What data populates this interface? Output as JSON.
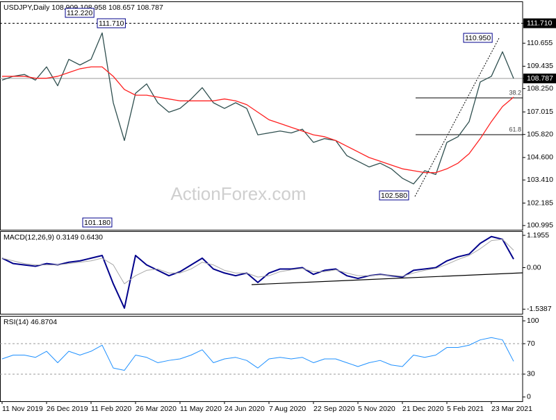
{
  "chart_data": [
    {
      "type": "line",
      "title": "USDJPY,Daily  108.909 108.958 108.657 108.787",
      "watermark": "ActionForex.com",
      "categories": [
        "11 Nov 2019",
        null,
        null,
        null,
        "26 Dec 2019",
        null,
        null,
        null,
        "11 Feb 2020",
        null,
        null,
        null,
        "26 Mar 2020",
        null,
        null,
        null,
        "11 May 2020",
        null,
        null,
        null,
        "24 Jun 2020",
        null,
        null,
        null,
        "7 Aug 2020",
        null,
        null,
        null,
        "22 Sep 2020",
        null,
        null,
        null,
        "5 Nov 2020",
        null,
        null,
        null,
        "21 Dec 2020",
        null,
        null,
        null,
        "5 Feb 2021",
        null,
        null,
        null,
        "23 Mar 2021",
        null,
        null
      ],
      "series": [
        {
          "color": "#2f4f4f",
          "values": [
            108.7,
            108.9,
            109.0,
            108.7,
            109.4,
            108.4,
            109.8,
            109.5,
            109.8,
            111.2,
            107.5,
            105.5,
            108.0,
            108.5,
            107.5,
            107.0,
            107.2,
            107.7,
            108.3,
            107.5,
            107.2,
            107.5,
            107.2,
            105.8,
            105.9,
            106.0,
            105.9,
            106.1,
            105.4,
            105.6,
            105.5,
            104.7,
            104.4,
            104.1,
            104.3,
            104.0,
            103.5,
            103.2,
            103.9,
            103.7,
            105.4,
            105.7,
            106.5,
            108.6,
            108.9,
            110.2,
            108.787
          ]
        },
        {
          "color": "#ff2020",
          "values": [
            108.9,
            108.9,
            108.9,
            108.8,
            108.8,
            108.9,
            109.1,
            109.3,
            109.4,
            109.4,
            108.9,
            108.2,
            107.9,
            107.9,
            107.8,
            107.7,
            107.6,
            107.6,
            107.6,
            107.6,
            107.7,
            107.6,
            107.4,
            107.0,
            106.6,
            106.4,
            106.2,
            106.0,
            105.8,
            105.7,
            105.5,
            105.2,
            104.9,
            104.6,
            104.4,
            104.2,
            104.0,
            103.9,
            103.8,
            103.8,
            104.0,
            104.3,
            104.8,
            105.6,
            106.5,
            107.3,
            107.8
          ]
        }
      ],
      "ylim": [
        100.77,
        112.87
      ],
      "yticks": [
        {
          "value": 111.71,
          "label": "111.710",
          "highlight": true
        },
        {
          "value": 110.655,
          "label": "110.655"
        },
        {
          "value": 109.435,
          "label": "109.435"
        },
        {
          "value": 108.787,
          "label": "108.787",
          "highlight": true
        },
        {
          "value": 108.25,
          "label": "108.250"
        },
        {
          "value": 107.015,
          "label": "107.015"
        },
        {
          "value": 105.82,
          "label": "105.820"
        },
        {
          "value": 104.6,
          "label": "104.600"
        },
        {
          "value": 103.41,
          "label": "103.410"
        },
        {
          "value": 102.185,
          "label": "102.185"
        },
        {
          "value": 100.995,
          "label": "100.995"
        }
      ],
      "hlines": [
        {
          "value": 111.71,
          "style": "dashed"
        },
        {
          "value": 108.787,
          "style": "solid"
        }
      ],
      "fib_levels": [
        {
          "label": "38.2",
          "value": 107.76
        },
        {
          "label": "61.8",
          "value": 105.81
        }
      ],
      "annotations": [
        {
          "text": "112.220"
        },
        {
          "text": "111.710"
        },
        {
          "text": "101.180"
        },
        {
          "text": "110.950"
        },
        {
          "text": "102.580"
        }
      ]
    },
    {
      "type": "line",
      "title": "MACD(12,26,9) 0.3149 0.6430",
      "series": [
        {
          "color": "#00008b",
          "width": 2,
          "values": [
            0.35,
            0.15,
            0.1,
            0.05,
            0.15,
            0.1,
            0.2,
            0.25,
            0.35,
            0.45,
            -0.6,
            -1.5,
            0.45,
            0.1,
            -0.1,
            -0.3,
            -0.15,
            0.1,
            0.35,
            -0.05,
            -0.2,
            -0.3,
            -0.2,
            -0.55,
            -0.2,
            -0.05,
            -0.05,
            0.0,
            -0.25,
            -0.1,
            -0.05,
            -0.3,
            -0.4,
            -0.3,
            -0.25,
            -0.3,
            -0.35,
            -0.1,
            -0.05,
            0.0,
            0.25,
            0.4,
            0.5,
            0.9,
            1.15,
            1.05,
            0.3149
          ]
        },
        {
          "color": "#a8a8a8",
          "width": 1,
          "values": [
            0.35,
            0.25,
            0.15,
            0.1,
            0.1,
            0.1,
            0.15,
            0.2,
            0.25,
            0.35,
            0.1,
            -0.6,
            -0.3,
            -0.1,
            -0.05,
            -0.2,
            -0.2,
            -0.05,
            0.2,
            0.1,
            -0.1,
            -0.2,
            -0.2,
            -0.35,
            -0.3,
            -0.15,
            -0.08,
            -0.03,
            -0.15,
            -0.15,
            -0.08,
            -0.2,
            -0.3,
            -0.3,
            -0.27,
            -0.28,
            -0.32,
            -0.2,
            -0.1,
            -0.03,
            0.12,
            0.3,
            0.45,
            0.7,
            1.0,
            1.05,
            0.643
          ]
        }
      ],
      "ylim": [
        -1.71,
        1.35
      ],
      "yticks": [
        1.1955,
        {
          "value": 0,
          "label": "0.00"
        },
        -1.5387
      ]
    },
    {
      "type": "line",
      "title": "RSI(14) 46.8704",
      "series": [
        {
          "color": "#1e90ff",
          "width": 1,
          "values": [
            50,
            55,
            55,
            52,
            60,
            45,
            60,
            55,
            60,
            68,
            38,
            35,
            55,
            52,
            45,
            48,
            50,
            55,
            62,
            45,
            50,
            52,
            48,
            38,
            50,
            52,
            50,
            52,
            45,
            50,
            50,
            45,
            40,
            45,
            48,
            42,
            40,
            55,
            52,
            55,
            65,
            65,
            68,
            75,
            78,
            75,
            46.8704
          ]
        }
      ],
      "ylim": [
        -5.6,
        106.5
      ],
      "yticks": [
        100,
        70,
        30,
        0
      ],
      "reference_lines": [
        70,
        30
      ]
    }
  ]
}
